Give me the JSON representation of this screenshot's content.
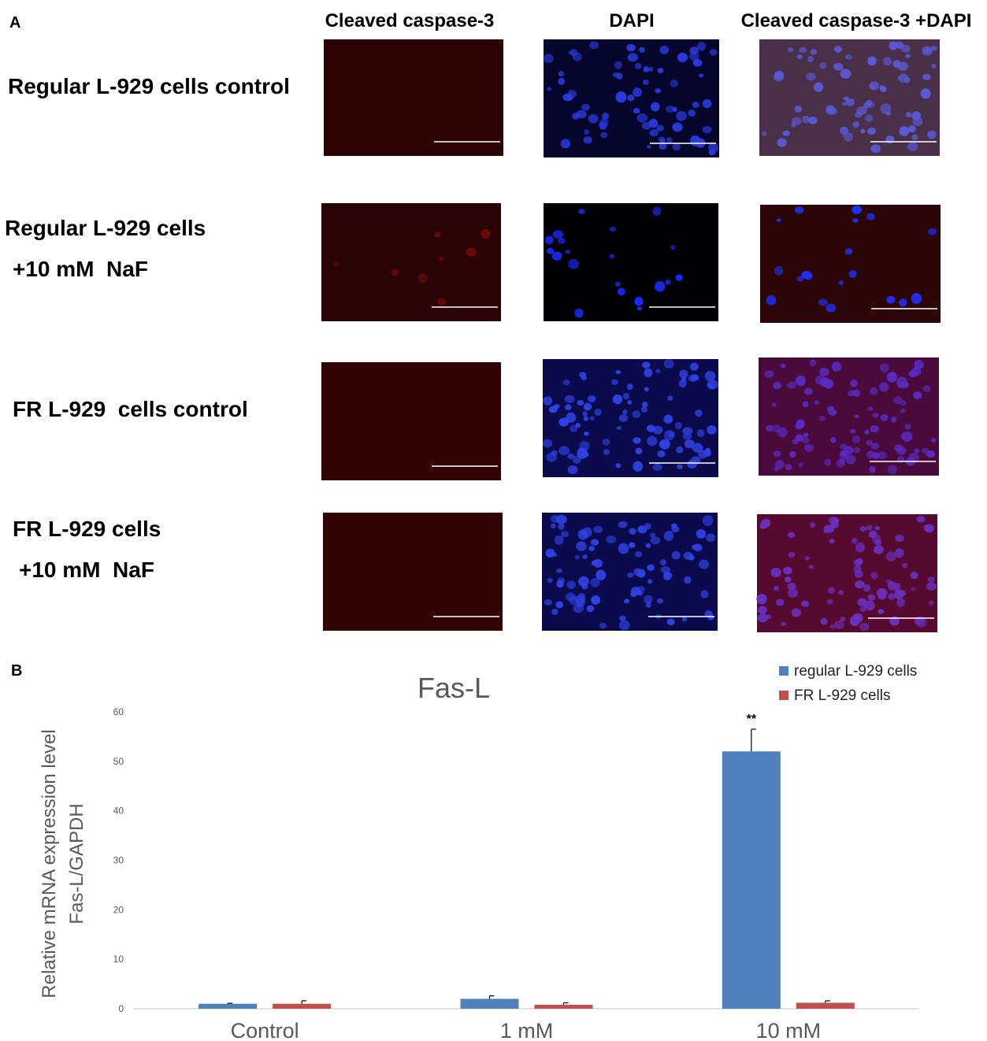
{
  "panel_a": {
    "label": "A",
    "column_headers": [
      "Cleaved caspase-3",
      "DAPI",
      "Cleaved caspase-3 +DAPI"
    ],
    "row_labels": [
      [
        "Regular L-929 cells control"
      ],
      [
        "Regular L-929 cells",
        "+10 mM  NaF"
      ],
      [
        "FR L-929  cells control"
      ],
      [
        "FR L-929 cells",
        "+10 mM  NaF"
      ]
    ]
  },
  "panel_b": {
    "label": "B"
  },
  "chart_data": {
    "type": "bar",
    "title": "Fas-L",
    "y_label": [
      "Relative mRNA expression level",
      "Fas-L/GAPDH"
    ],
    "categories": [
      "Control",
      "1 mM",
      "10 mM"
    ],
    "series": [
      {
        "name": "regular L-929 cells",
        "color": "#4f81bd",
        "values": [
          1,
          2,
          52
        ],
        "errors": [
          0.1,
          0.6,
          4.5
        ]
      },
      {
        "name": "FR L-929 cells",
        "color": "#c0504d",
        "values": [
          1,
          0.8,
          1.2
        ],
        "errors": [
          0.6,
          0.4,
          0.4
        ]
      }
    ],
    "annotations": [
      {
        "text": "**",
        "category": "10 mM",
        "series": "regular L-929 cells"
      }
    ],
    "ylim": [
      0,
      60
    ],
    "yticks": [
      0,
      10,
      20,
      30,
      40,
      50,
      60
    ],
    "grid": false,
    "legend": "top-right"
  }
}
